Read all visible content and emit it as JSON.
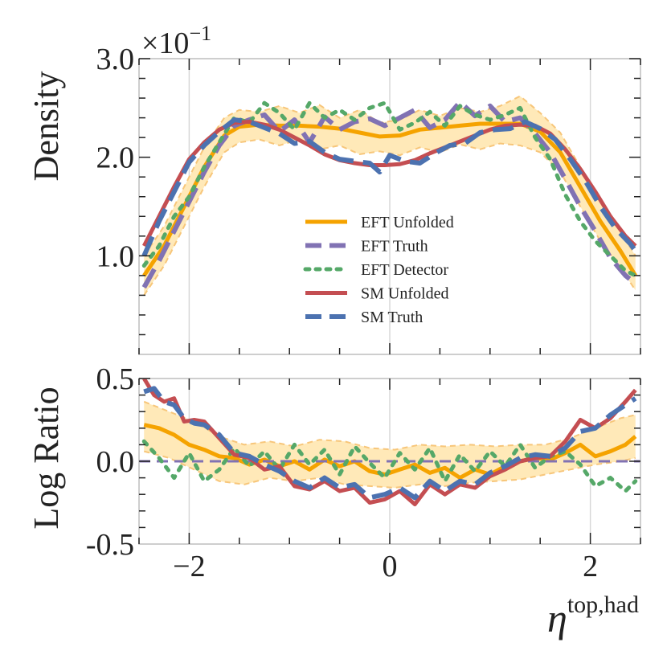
{
  "chart_data": [
    {
      "type": "line",
      "panel": "top",
      "ylabel": "Density",
      "scale_label": "×10",
      "scale_exponent": "−1",
      "xlim": [
        -2.5,
        2.5
      ],
      "ylim": [
        0.0,
        0.3
      ],
      "yticks": [
        {
          "v": 0.1,
          "label": "1.0"
        },
        {
          "v": 0.2,
          "label": "2.0"
        },
        {
          "v": 0.3,
          "label": "3.0"
        }
      ],
      "legend_position": "center",
      "legend": [
        "EFT Unfolded",
        "EFT Truth",
        "EFT Detector",
        "SM Unfolded",
        "SM Truth"
      ],
      "band": {
        "name": "EFT Unfolded uncertainty",
        "color": "#ffe9b8",
        "edge_color": "#f7c67a",
        "x": [
          -2.45,
          -2.25,
          -2.05,
          -1.85,
          -1.65,
          -1.5,
          -1.3,
          -1.1,
          -0.9,
          -0.7,
          -0.5,
          -0.3,
          -0.1,
          0.1,
          0.3,
          0.5,
          0.7,
          0.9,
          1.1,
          1.3,
          1.5,
          1.7,
          1.9,
          2.1,
          2.3,
          2.45
        ],
        "upper": [
          0.1,
          0.13,
          0.17,
          0.21,
          0.24,
          0.248,
          0.246,
          0.252,
          0.245,
          0.253,
          0.24,
          0.248,
          0.235,
          0.238,
          0.248,
          0.242,
          0.25,
          0.246,
          0.252,
          0.262,
          0.245,
          0.225,
          0.19,
          0.155,
          0.125,
          0.1
        ],
        "lower": [
          0.06,
          0.09,
          0.13,
          0.17,
          0.205,
          0.215,
          0.218,
          0.212,
          0.218,
          0.208,
          0.212,
          0.203,
          0.206,
          0.202,
          0.21,
          0.205,
          0.213,
          0.208,
          0.214,
          0.212,
          0.205,
          0.185,
          0.15,
          0.115,
          0.088,
          0.065
        ]
      },
      "series": [
        {
          "name": "EFT Unfolded",
          "color": "#f5a300",
          "dash": "solid",
          "x": [
            -2.45,
            -2.25,
            -2.05,
            -1.85,
            -1.65,
            -1.5,
            -1.3,
            -1.1,
            -0.9,
            -0.7,
            -0.5,
            -0.3,
            -0.1,
            0.1,
            0.3,
            0.5,
            0.7,
            0.9,
            1.1,
            1.3,
            1.5,
            1.7,
            1.9,
            2.1,
            2.3,
            2.45
          ],
          "y": [
            0.08,
            0.11,
            0.15,
            0.19,
            0.222,
            0.231,
            0.233,
            0.232,
            0.232,
            0.231,
            0.229,
            0.225,
            0.221,
            0.222,
            0.228,
            0.23,
            0.232,
            0.234,
            0.234,
            0.234,
            0.226,
            0.205,
            0.17,
            0.135,
            0.105,
            0.08
          ]
        },
        {
          "name": "EFT Truth",
          "color": "#8172b3",
          "dash": "dashed",
          "x": [
            -2.45,
            -2.3,
            -2.15,
            -2.0,
            -1.85,
            -1.7,
            -1.55,
            -1.4,
            -1.25,
            -1.1,
            -0.95,
            -0.8,
            -0.65,
            -0.5,
            -0.35,
            -0.2,
            -0.05,
            0.1,
            0.25,
            0.4,
            0.55,
            0.7,
            0.85,
            1.0,
            1.15,
            1.3,
            1.45,
            1.6,
            1.75,
            1.9,
            2.05,
            2.2,
            2.35,
            2.45
          ],
          "y": [
            0.068,
            0.095,
            0.125,
            0.155,
            0.185,
            0.212,
            0.232,
            0.238,
            0.243,
            0.226,
            0.238,
            0.215,
            0.241,
            0.228,
            0.236,
            0.239,
            0.232,
            0.24,
            0.248,
            0.23,
            0.238,
            0.256,
            0.242,
            0.252,
            0.236,
            0.24,
            0.224,
            0.205,
            0.178,
            0.15,
            0.125,
            0.098,
            0.08,
            0.072
          ]
        },
        {
          "name": "EFT Detector",
          "color": "#55a868",
          "dash": "dotted",
          "x": [
            -2.45,
            -2.3,
            -2.15,
            -2.0,
            -1.85,
            -1.7,
            -1.55,
            -1.4,
            -1.25,
            -1.1,
            -0.95,
            -0.8,
            -0.65,
            -0.5,
            -0.35,
            -0.2,
            -0.05,
            0.1,
            0.25,
            0.4,
            0.55,
            0.7,
            0.85,
            1.0,
            1.15,
            1.3,
            1.45,
            1.6,
            1.75,
            1.9,
            2.05,
            2.2,
            2.35,
            2.45
          ],
          "y": [
            0.09,
            0.11,
            0.14,
            0.16,
            0.19,
            0.215,
            0.24,
            0.235,
            0.255,
            0.245,
            0.228,
            0.255,
            0.24,
            0.248,
            0.238,
            0.25,
            0.255,
            0.228,
            0.235,
            0.246,
            0.232,
            0.252,
            0.243,
            0.238,
            0.243,
            0.25,
            0.22,
            0.198,
            0.162,
            0.135,
            0.115,
            0.1,
            0.085,
            0.08
          ]
        },
        {
          "name": "SM Unfolded",
          "color": "#c44e52",
          "dash": "solid",
          "x": [
            -2.45,
            -2.3,
            -2.15,
            -2.0,
            -1.85,
            -1.7,
            -1.55,
            -1.4,
            -1.25,
            -1.1,
            -0.95,
            -0.8,
            -0.65,
            -0.5,
            -0.35,
            -0.2,
            -0.05,
            0.1,
            0.25,
            0.4,
            0.55,
            0.7,
            0.85,
            1.0,
            1.15,
            1.3,
            1.45,
            1.6,
            1.75,
            1.9,
            2.05,
            2.2,
            2.35,
            2.45
          ],
          "y": [
            0.11,
            0.14,
            0.17,
            0.198,
            0.215,
            0.228,
            0.235,
            0.236,
            0.233,
            0.228,
            0.22,
            0.212,
            0.203,
            0.197,
            0.194,
            0.192,
            0.192,
            0.193,
            0.197,
            0.204,
            0.21,
            0.216,
            0.222,
            0.228,
            0.232,
            0.233,
            0.232,
            0.224,
            0.208,
            0.188,
            0.165,
            0.14,
            0.12,
            0.11
          ]
        },
        {
          "name": "SM Truth",
          "color": "#4c72b0",
          "dash": "dashed",
          "x": [
            -2.45,
            -2.3,
            -2.15,
            -2.0,
            -1.85,
            -1.7,
            -1.55,
            -1.4,
            -1.25,
            -1.1,
            -0.95,
            -0.8,
            -0.65,
            -0.5,
            -0.35,
            -0.2,
            -0.1,
            0.0,
            0.15,
            0.3,
            0.45,
            0.6,
            0.75,
            0.9,
            1.05,
            1.2,
            1.35,
            1.5,
            1.65,
            1.8,
            1.95,
            2.1,
            2.25,
            2.4,
            2.45
          ],
          "y": [
            0.1,
            0.135,
            0.165,
            0.195,
            0.212,
            0.226,
            0.238,
            0.236,
            0.23,
            0.224,
            0.214,
            0.216,
            0.205,
            0.198,
            0.196,
            0.194,
            0.185,
            0.202,
            0.196,
            0.194,
            0.204,
            0.212,
            0.214,
            0.225,
            0.228,
            0.229,
            0.236,
            0.229,
            0.218,
            0.198,
            0.176,
            0.15,
            0.128,
            0.112,
            0.105
          ]
        }
      ]
    },
    {
      "type": "line",
      "panel": "bottom",
      "ylabel": "Log Ratio",
      "xlabel_main": "η",
      "xlabel_sup": "top,had",
      "xlim": [
        -2.5,
        2.5
      ],
      "ylim": [
        -0.5,
        0.5
      ],
      "xticks": [
        {
          "v": -2,
          "label": "−2"
        },
        {
          "v": 0,
          "label": "0"
        },
        {
          "v": 2,
          "label": "2"
        }
      ],
      "yticks": [
        {
          "v": 0.5,
          "label": "0.5"
        },
        {
          "v": 0.0,
          "label": "0.0"
        },
        {
          "v": -0.5,
          "label": "-0.5"
        }
      ],
      "band": {
        "name": "EFT Unfolded ratio uncertainty",
        "color": "#ffe9b8",
        "edge_color": "#f7c67a",
        "x": [
          -2.45,
          -2.2,
          -1.95,
          -1.7,
          -1.45,
          -1.2,
          -0.95,
          -0.7,
          -0.45,
          -0.2,
          0.05,
          0.3,
          0.55,
          0.8,
          1.05,
          1.3,
          1.55,
          1.8,
          2.05,
          2.3,
          2.45
        ],
        "upper": [
          0.36,
          0.3,
          0.24,
          0.15,
          0.1,
          0.12,
          0.09,
          0.13,
          0.12,
          0.08,
          0.07,
          0.1,
          0.09,
          0.1,
          0.09,
          0.1,
          0.1,
          0.14,
          0.2,
          0.26,
          0.28
        ],
        "lower": [
          0.06,
          0.02,
          -0.05,
          -0.12,
          -0.14,
          -0.1,
          -0.12,
          -0.1,
          -0.14,
          -0.15,
          -0.16,
          -0.14,
          -0.15,
          -0.13,
          -0.12,
          -0.11,
          -0.08,
          -0.05,
          -0.02,
          0.0,
          0.02
        ]
      },
      "series": [
        {
          "name": "EFT Unfolded",
          "color": "#f5a300",
          "dash": "solid",
          "x": [
            -2.45,
            -2.3,
            -2.15,
            -2.0,
            -1.85,
            -1.7,
            -1.55,
            -1.4,
            -1.25,
            -1.1,
            -0.95,
            -0.8,
            -0.65,
            -0.5,
            -0.35,
            -0.2,
            -0.05,
            0.1,
            0.25,
            0.4,
            0.55,
            0.7,
            0.85,
            1.0,
            1.15,
            1.3,
            1.45,
            1.6,
            1.75,
            1.9,
            2.05,
            2.2,
            2.35,
            2.45
          ],
          "y": [
            0.22,
            0.2,
            0.16,
            0.1,
            0.07,
            0.03,
            0.02,
            -0.02,
            0.01,
            -0.03,
            0.0,
            -0.05,
            0.01,
            -0.03,
            0.0,
            -0.06,
            -0.08,
            -0.05,
            -0.02,
            -0.07,
            -0.04,
            -0.1,
            -0.05,
            -0.08,
            -0.03,
            0.0,
            0.02,
            0.01,
            0.05,
            0.1,
            0.03,
            0.06,
            0.1,
            0.15
          ]
        },
        {
          "name": "EFT Truth",
          "color": "#8172b3",
          "dash": "dashed",
          "x": [
            -2.5,
            2.5
          ],
          "y": [
            0.0,
            0.0
          ]
        },
        {
          "name": "EFT Detector",
          "color": "#55a868",
          "dash": "dotted",
          "x": [
            -2.45,
            -2.3,
            -2.15,
            -2.0,
            -1.85,
            -1.7,
            -1.55,
            -1.4,
            -1.25,
            -1.1,
            -0.95,
            -0.8,
            -0.65,
            -0.5,
            -0.35,
            -0.2,
            -0.05,
            0.1,
            0.25,
            0.4,
            0.55,
            0.7,
            0.85,
            1.0,
            1.15,
            1.3,
            1.45,
            1.6,
            1.75,
            1.9,
            2.05,
            2.2,
            2.35,
            2.45
          ],
          "y": [
            0.12,
            0.02,
            -0.1,
            0.05,
            -0.12,
            -0.05,
            0.08,
            -0.03,
            0.06,
            -0.05,
            0.1,
            -0.02,
            0.07,
            -0.08,
            0.09,
            -0.01,
            -0.1,
            0.05,
            -0.05,
            0.08,
            -0.12,
            0.04,
            -0.06,
            0.06,
            -0.03,
            0.1,
            -0.04,
            0.03,
            0.06,
            -0.02,
            -0.15,
            -0.1,
            -0.18,
            -0.12
          ]
        },
        {
          "name": "SM Unfolded",
          "color": "#c44e52",
          "dash": "solid",
          "x": [
            -2.45,
            -2.35,
            -2.25,
            -2.15,
            -2.05,
            -1.95,
            -1.85,
            -1.7,
            -1.55,
            -1.4,
            -1.25,
            -1.1,
            -0.95,
            -0.8,
            -0.65,
            -0.5,
            -0.35,
            -0.2,
            -0.05,
            0.1,
            0.25,
            0.4,
            0.55,
            0.7,
            0.85,
            1.0,
            1.15,
            1.3,
            1.45,
            1.6,
            1.75,
            1.9,
            2.05,
            2.2,
            2.35,
            2.45
          ],
          "y": [
            0.5,
            0.4,
            0.36,
            0.38,
            0.24,
            0.25,
            0.24,
            0.14,
            0.04,
            0.02,
            -0.05,
            -0.03,
            -0.15,
            -0.17,
            -0.12,
            -0.18,
            -0.16,
            -0.25,
            -0.23,
            -0.18,
            -0.26,
            -0.14,
            -0.2,
            -0.14,
            -0.16,
            -0.09,
            -0.05,
            0.0,
            0.02,
            0.03,
            0.12,
            0.25,
            0.2,
            0.26,
            0.36,
            0.43
          ]
        },
        {
          "name": "SM Truth",
          "color": "#4c72b0",
          "dash": "dashed",
          "x": [
            -2.45,
            -2.35,
            -2.25,
            -2.15,
            -2.05,
            -1.95,
            -1.85,
            -1.7,
            -1.55,
            -1.4,
            -1.25,
            -1.1,
            -0.95,
            -0.8,
            -0.65,
            -0.5,
            -0.35,
            -0.2,
            -0.05,
            0.1,
            0.25,
            0.4,
            0.55,
            0.7,
            0.85,
            1.0,
            1.15,
            1.3,
            1.45,
            1.6,
            1.75,
            1.9,
            2.05,
            2.2,
            2.35,
            2.45
          ],
          "y": [
            0.42,
            0.44,
            0.36,
            0.34,
            0.26,
            0.23,
            0.22,
            0.16,
            0.05,
            0.03,
            -0.02,
            -0.06,
            -0.12,
            -0.16,
            -0.1,
            -0.16,
            -0.14,
            -0.22,
            -0.2,
            -0.16,
            -0.22,
            -0.12,
            -0.18,
            -0.12,
            -0.14,
            -0.07,
            -0.03,
            0.02,
            0.04,
            0.03,
            0.08,
            0.18,
            0.2,
            0.28,
            0.34,
            0.38
          ]
        }
      ]
    }
  ]
}
